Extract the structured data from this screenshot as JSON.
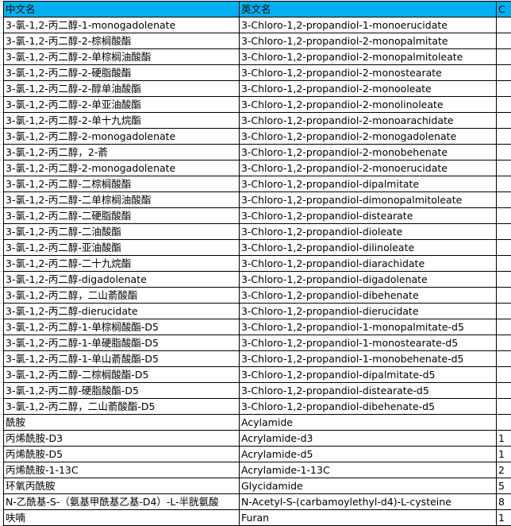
{
  "header": [
    "中文名",
    "英文名",
    "C"
  ],
  "rows": [
    [
      "3-氯-1,2-丙二醇-1-monogadolenate",
      "3-Chloro-1,2-propandiol-1-monoerucidate",
      ""
    ],
    [
      "3-氯-1,2-丙二醇-2-棕榈酸酯",
      "3-Chloro-1,2-propandiol-2-monopalmitate",
      ""
    ],
    [
      "3-氯-1,2-丙二醇-2-单棕榈油酸酯",
      "3-Chloro-1,2-propandiol-2-monopalmitoleate",
      ""
    ],
    [
      "3-氯-1,2-丙二醇-2-硬脂酸酯",
      "3-Chloro-1,2-propandiol-2-monostearate",
      ""
    ],
    [
      "3-氯-1,2-丙二醇-2-醇单油酸酯",
      "3-Chloro-1,2-propandiol-2-monooleate",
      ""
    ],
    [
      "3-氯-1,2-丙二醇-2-单亚油酸酯",
      "3-Chloro-1,2-propandiol-2-monolinoleate",
      ""
    ],
    [
      "3-氯-1,2-丙二醇-2-单十九烷酯",
      "3-Chloro-1,2-propandiol-2-monoarachidate",
      ""
    ],
    [
      "3-氯-1,2-丙二醇-2-monogadolenate",
      "3-Chloro-1,2-propandiol-2-monogadolenate",
      ""
    ],
    [
      "3-氯-1,2-丙二醇，2-萮",
      "3-Chloro-1,2-propandiol-2-monobehenate",
      ""
    ],
    [
      "3-氯-1,2-丙二醇-2-monogadolenate",
      "3-Chloro-1,2-propandiol-2-monoerucidate",
      ""
    ],
    [
      "3-氯-1,2-丙二醇-二棕榈酸酯",
      "3-Chloro-1,2-propandiol-dipalmitate",
      ""
    ],
    [
      "3-氯-1,2-丙二醇-二单棕榈油酸酯",
      "3-Chloro-1,2-propandiol-dimonopalmitoleate",
      ""
    ],
    [
      "3-氯-1,2-丙二醇-二硬脂酸酯",
      "3-Chloro-1,2-propandiol-distearate",
      ""
    ],
    [
      "3-氯-1,2-丙二醇-二油酸酯",
      "3-Chloro-1,2-propandiol-dioleate",
      ""
    ],
    [
      "3-氯-1,2-丙二醇-亚油酸酯",
      "3-Chloro-1,2-propandiol-dilinoleate",
      ""
    ],
    [
      "3-氯-1,2-丙二醇-二十九烷酯",
      "3-Chloro-1,2-propandiol-diarachidate",
      ""
    ],
    [
      "3-氯-1,2-丙二醇-digadolenate",
      "3-Chloro-1,2-propandiol-digadolenate",
      ""
    ],
    [
      "3-氯-1,2-丙二醇，二山萮酸酯",
      "3-Chloro-1,2-propandiol-dibehenate",
      ""
    ],
    [
      "3-氯-1,2-丙二醇-dierucidate",
      "3-Chloro-1,2-propandiol-dierucidate",
      ""
    ],
    [
      "3-氯-1,2-丙二醇-1-单棕榈酸酯-D5",
      "3-Chloro-1,2-propandiol-1-monopalmitate-d5",
      ""
    ],
    [
      "3-氯-1,2-丙二醇-1-单硬脂酸酯-D5",
      "3-Chloro-1,2-propandiol-1-monostearate-d5",
      ""
    ],
    [
      "3-氯-1,2-丙二醇-1-单山萮酸酯-D5",
      "3-Chloro-1,2-propandiol-1-monobehenate-d5",
      ""
    ],
    [
      "3-氯-1,2-丙二醇-二棕榈酸酯-D5",
      "3-Chloro-1,2-propandiol-dipalmitate-d5",
      ""
    ],
    [
      "3-氯-1,2-丙二醇-硬脂酸酯-D5",
      "3-Chloro-1,2-propandiol-distearate-d5",
      ""
    ],
    [
      "3-氯-1,2-丙二醇，二山萮酸酯-D5",
      "3-Chloro-1,2-propandiol-dibehenate-d5",
      ""
    ],
    [
      "酰胺",
      "Acylamide",
      ""
    ],
    [
      "丙烯酰胺-D3",
      "Acrylamide-d3",
      "1"
    ],
    [
      "丙烯酰胺-D5",
      "Acrylamide-d5",
      "1"
    ],
    [
      "丙烯酰胺-1-13C",
      "Acrylamide-1-13C",
      "2"
    ],
    [
      "环氧丙酰胺",
      "Glycidamide",
      "5"
    ],
    [
      "N-乙酰基-S-（氨基甲酰基乙基-D4）-L-半胱氨酸",
      "N-Acetyl-S-(carbamoylethyl-d4)-L-cysteine",
      "8"
    ],
    [
      "呋喃",
      "Furan",
      "1"
    ]
  ],
  "colors": {
    "header_bg": "#00b0f0",
    "border": "#000000"
  }
}
